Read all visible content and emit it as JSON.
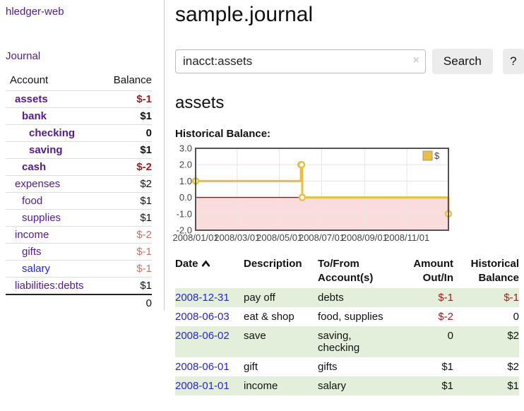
{
  "app": {
    "title": "hledger-web"
  },
  "colors": {
    "purple_link": "#551a8b",
    "blue_link": "#2525cd",
    "negative_strong": "#9b1c1c",
    "negative_soft": "#c9706d",
    "stripe_green": "#e4efdb",
    "chart_series_gold": "#e8bf43",
    "chart_negative_region": "#fadcdc",
    "chart_zero_line": "#8b1a1a",
    "chart_border": "#545454",
    "chart_grid": "#e6e6e6"
  },
  "sidebar": {
    "journal_link": "Journal",
    "accounts_table": {
      "headers": [
        "Account",
        "Balance"
      ],
      "rows": [
        {
          "name": "assets",
          "indent": 1,
          "bold": true,
          "link_color": "purple",
          "balance": "$-1",
          "balance_class": "neg-strong"
        },
        {
          "name": "bank",
          "indent": 2,
          "bold": true,
          "link_color": "purple",
          "balance": "$1",
          "balance_class": ""
        },
        {
          "name": "checking",
          "indent": 3,
          "bold": true,
          "link_color": "purple",
          "balance": "0",
          "balance_class": ""
        },
        {
          "name": "saving",
          "indent": 3,
          "bold": true,
          "link_color": "purple",
          "balance": "$1",
          "balance_class": ""
        },
        {
          "name": "cash",
          "indent": 2,
          "bold": true,
          "link_color": "purple",
          "balance": "$-2",
          "balance_class": "neg-strong"
        },
        {
          "name": "expenses",
          "indent": 1,
          "bold": false,
          "link_color": "purple",
          "balance": "$2",
          "balance_class": ""
        },
        {
          "name": "food",
          "indent": 2,
          "bold": false,
          "link_color": "purple",
          "balance": "$1",
          "balance_class": ""
        },
        {
          "name": "supplies",
          "indent": 2,
          "bold": false,
          "link_color": "purple",
          "balance": "$1",
          "balance_class": ""
        },
        {
          "name": "income",
          "indent": 1,
          "bold": false,
          "link_color": "purple",
          "balance": "$-2",
          "balance_class": "neg-soft"
        },
        {
          "name": "gifts",
          "indent": 2,
          "bold": false,
          "link_color": "purple",
          "balance": "$-1",
          "balance_class": "neg-soft"
        },
        {
          "name": "salary",
          "indent": 2,
          "bold": false,
          "link_color": "blue",
          "balance": "$-1",
          "balance_class": "neg-soft"
        },
        {
          "name": "liabilities:debts",
          "indent": 1,
          "bold": false,
          "link_color": "purple",
          "balance": "$1",
          "balance_class": ""
        }
      ],
      "total": "0"
    }
  },
  "main": {
    "title": "sample.journal",
    "search": {
      "value": "inacct:assets",
      "clear_icon": "×",
      "search_label": "Search",
      "help_label": "?"
    },
    "account_heading": "assets",
    "chart_label": "Historical Balance:"
  },
  "chart_data": {
    "type": "line",
    "title": "Historical Balance",
    "step": true,
    "x_range": [
      "2008-01-01",
      "2008-12-31"
    ],
    "ylim": [
      -2.0,
      3.0
    ],
    "yticks": [
      3.0,
      2.0,
      1.0,
      0.0,
      -1.0,
      -2.0
    ],
    "xticks": [
      "2008/01/01",
      "2008/03/01",
      "2008/05/01",
      "2008/07/01",
      "2008/09/01",
      "2008/11/01"
    ],
    "grid": true,
    "legend": "$",
    "legend_position": "top-right",
    "series": [
      {
        "name": "$",
        "points": [
          {
            "date": "2008-01-01",
            "value": 1
          },
          {
            "date": "2008-06-01",
            "value": 2
          },
          {
            "date": "2008-06-02",
            "value": 2
          },
          {
            "date": "2008-06-03",
            "value": 0
          },
          {
            "date": "2008-12-31",
            "value": -1
          }
        ]
      }
    ]
  },
  "register": {
    "headers": [
      "Date",
      "Description",
      "To/From Account(s)",
      "Amount Out/In",
      "Historical Balance"
    ],
    "rows": [
      {
        "date": "2008-12-31",
        "description": "pay off",
        "accounts": "debts",
        "amount": "$-1",
        "amount_negative": true,
        "balance": "$-1",
        "balance_negative": true
      },
      {
        "date": "2008-06-03",
        "description": "eat & shop",
        "accounts": "food, supplies",
        "amount": "$-2",
        "amount_negative": true,
        "balance": "0",
        "balance_negative": false
      },
      {
        "date": "2008-06-02",
        "description": "save",
        "accounts": "saving, checking",
        "amount": "0",
        "amount_negative": false,
        "balance": "$2",
        "balance_negative": false
      },
      {
        "date": "2008-06-01",
        "description": "gift",
        "accounts": "gifts",
        "amount": "$1",
        "amount_negative": false,
        "balance": "$2",
        "balance_negative": false
      },
      {
        "date": "2008-01-01",
        "description": "income",
        "accounts": "salary",
        "amount": "$1",
        "amount_negative": false,
        "balance": "$1",
        "balance_negative": false
      }
    ]
  }
}
